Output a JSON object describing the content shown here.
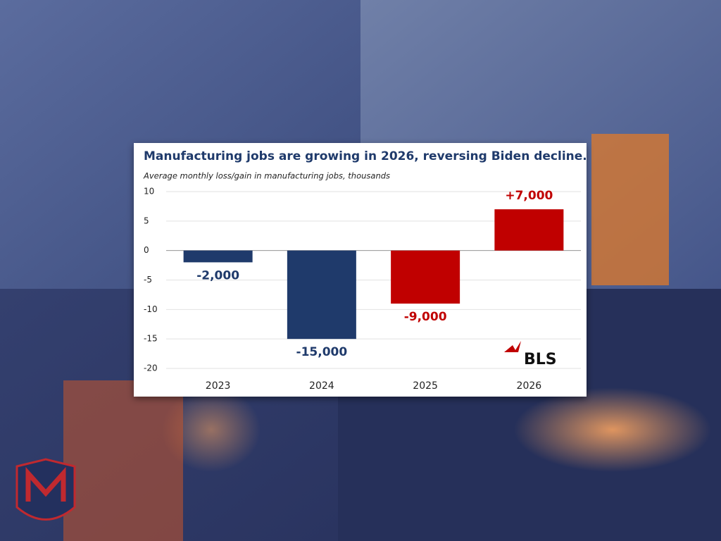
{
  "chart_data": {
    "type": "bar",
    "title": "Manufacturing jobs are growing in 2026, reversing Biden decline.",
    "subtitle": "Average monthly loss/gain in manufacturing jobs, thousands",
    "categories": [
      "2023",
      "2024",
      "2025",
      "2026"
    ],
    "values": [
      -2,
      -15,
      -9,
      7
    ],
    "value_labels": [
      "-2,000",
      "-15,000",
      "-9,000",
      "+7,000"
    ],
    "colors": [
      "#1f3a6b",
      "#1f3a6b",
      "#c00000",
      "#c00000"
    ],
    "ylim": [
      -20,
      10
    ],
    "yticks": [
      -20,
      -15,
      -10,
      -5,
      0,
      5,
      10
    ],
    "grid": true,
    "source_logo": "BLS"
  }
}
